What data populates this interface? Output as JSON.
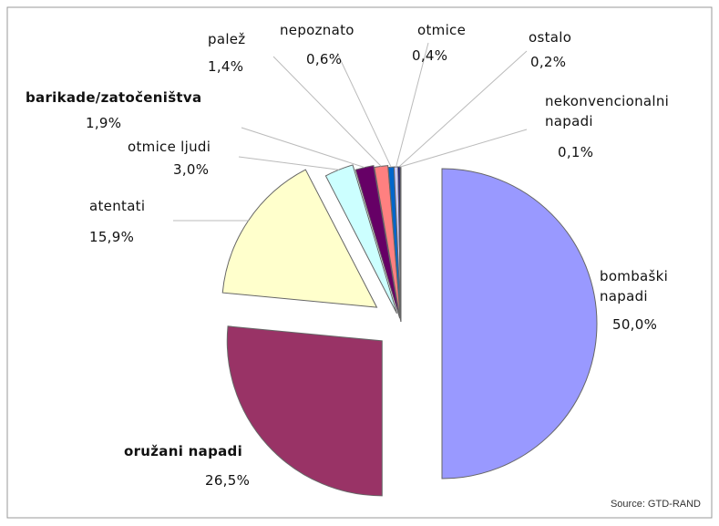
{
  "chart_data": {
    "type": "pie",
    "categories": [
      "bombaški napadi",
      "oružani napadi",
      "atentati",
      "otmice ljudi",
      "barikade/zatočeništva",
      "palež",
      "nepoznato",
      "otmice",
      "ostalo",
      "nekonvencionalni napadi"
    ],
    "values": [
      50.0,
      26.5,
      15.9,
      3.0,
      1.9,
      1.4,
      0.6,
      0.4,
      0.2,
      0.1
    ],
    "value_labels": [
      "50,0%",
      "26,5%",
      "15,9%",
      "3,0%",
      "1,9%",
      "1,4%",
      "0,6%",
      "0,4%",
      "0,2%",
      "0,1%"
    ],
    "colors": [
      "#9999ff",
      "#993366",
      "#ffffcc",
      "#ccffff",
      "#660066",
      "#ff8080",
      "#0066cc",
      "#ccccff",
      "#000080",
      "#1a1a4a"
    ],
    "source": "Source: GTD-RAND"
  }
}
